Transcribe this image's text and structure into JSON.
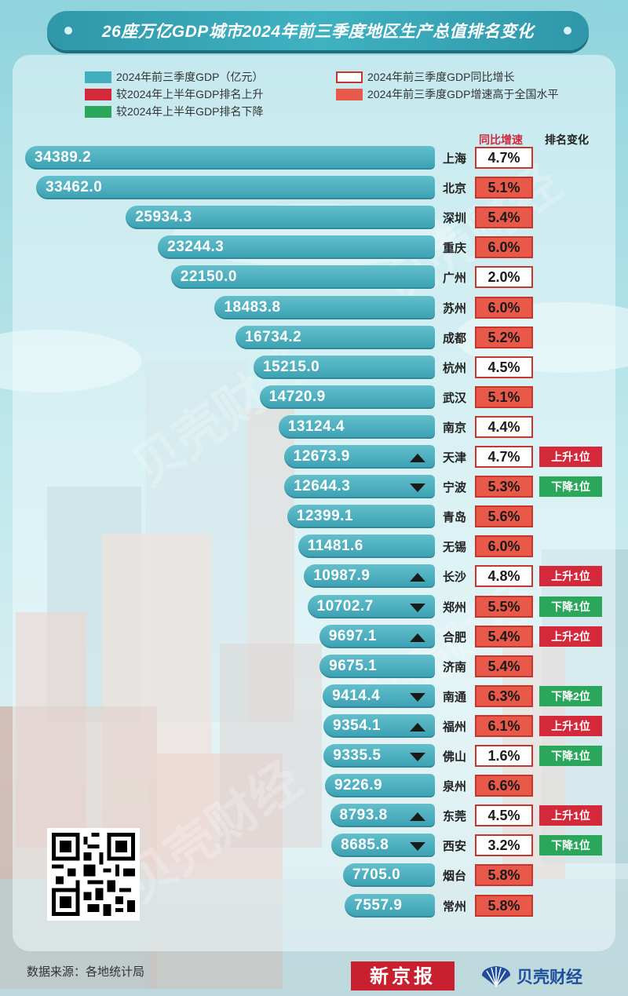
{
  "title": "26座万亿GDP城市2024年前三季度地区生产总值排名变化",
  "colors": {
    "bar": "#3aa1b3",
    "rank_up": "#d4283b",
    "rank_down": "#2aa75a",
    "growth_above_national": "#e8594a",
    "growth_border": "#c8362b"
  },
  "legend": [
    {
      "label": "2024年前三季度GDP（亿元）",
      "swatch": "bar"
    },
    {
      "label": "2024年前三季度GDP同比增长",
      "swatch": "outline"
    },
    {
      "label": "较2024年上半年GDP排名上升",
      "swatch": "up"
    },
    {
      "label": "2024年前三季度GDP增速高于全国水平",
      "swatch": "above"
    },
    {
      "label": "较2024年上半年GDP排名下降",
      "swatch": "down"
    }
  ],
  "headers": {
    "growth": "同比增速",
    "rank": "排名变化"
  },
  "footer": {
    "source": "数据来源：各地统计局",
    "logo1": "新京报",
    "logo2": "贝壳财经"
  },
  "watermark": "贝壳财经",
  "chart_data": {
    "type": "bar",
    "orientation": "horizontal",
    "value_unit": "亿元",
    "categories": [
      "上海",
      "北京",
      "深圳",
      "重庆",
      "广州",
      "苏州",
      "成都",
      "杭州",
      "武汉",
      "南京",
      "天津",
      "宁波",
      "青岛",
      "无锡",
      "长沙",
      "郑州",
      "合肥",
      "济南",
      "南通",
      "福州",
      "佛山",
      "泉州",
      "东莞",
      "西安",
      "烟台",
      "常州"
    ],
    "series": [
      {
        "name": "2024年前三季度GDP（亿元）",
        "values": [
          34389.2,
          33462.0,
          25934.3,
          23244.3,
          22150.0,
          18483.8,
          16734.2,
          15215.0,
          14720.9,
          13124.4,
          12673.9,
          12644.3,
          12399.1,
          11481.6,
          10987.9,
          10702.7,
          9697.1,
          9675.1,
          9414.4,
          9354.1,
          9335.5,
          9226.9,
          8793.8,
          8685.8,
          7705.0,
          7557.9
        ]
      },
      {
        "name": "2024年前三季度GDP同比增长",
        "values": [
          4.7,
          5.1,
          5.4,
          6.0,
          2.0,
          6.0,
          5.2,
          4.5,
          5.1,
          4.4,
          4.7,
          5.3,
          5.6,
          6.0,
          4.8,
          5.5,
          5.4,
          5.4,
          6.3,
          6.1,
          1.6,
          6.6,
          4.5,
          3.2,
          5.8,
          5.8
        ]
      }
    ],
    "growth_labels": [
      "4.7%",
      "5.1%",
      "5.4%",
      "6.0%",
      "2.0%",
      "6.0%",
      "5.2%",
      "4.5%",
      "5.1%",
      "4.4%",
      "4.7%",
      "5.3%",
      "5.6%",
      "6.0%",
      "4.8%",
      "5.5%",
      "5.4%",
      "5.4%",
      "6.3%",
      "6.1%",
      "1.6%",
      "6.6%",
      "4.5%",
      "3.2%",
      "5.8%",
      "5.8%"
    ],
    "value_labels": [
      "34389.2",
      "33462.0",
      "25934.3",
      "23244.3",
      "22150.0",
      "18483.8",
      "16734.2",
      "15215.0",
      "14720.9",
      "13124.4",
      "12673.9",
      "12644.3",
      "12399.1",
      "11481.6",
      "10987.9",
      "10702.7",
      "9697.1",
      "9675.1",
      "9414.4",
      "9354.1",
      "9335.5",
      "9226.9",
      "8793.8",
      "8685.8",
      "7705.0",
      "7557.9"
    ],
    "above_national": [
      false,
      true,
      true,
      true,
      false,
      true,
      true,
      false,
      true,
      false,
      false,
      true,
      true,
      true,
      false,
      true,
      true,
      true,
      true,
      true,
      false,
      true,
      false,
      false,
      true,
      true
    ],
    "rank_change_direction": [
      "",
      "",
      "",
      "",
      "",
      "",
      "",
      "",
      "",
      "",
      "up",
      "down",
      "",
      "",
      "up",
      "down",
      "up",
      "",
      "down",
      "up",
      "down",
      "",
      "up",
      "down",
      "",
      ""
    ],
    "rank_change_text": [
      "",
      "",
      "",
      "",
      "",
      "",
      "",
      "",
      "",
      "",
      "上升1位",
      "下降1位",
      "",
      "",
      "上升1位",
      "下降1位",
      "上升2位",
      "",
      "下降2位",
      "上升1位",
      "下降1位",
      "",
      "上升1位",
      "下降1位",
      "",
      ""
    ]
  }
}
